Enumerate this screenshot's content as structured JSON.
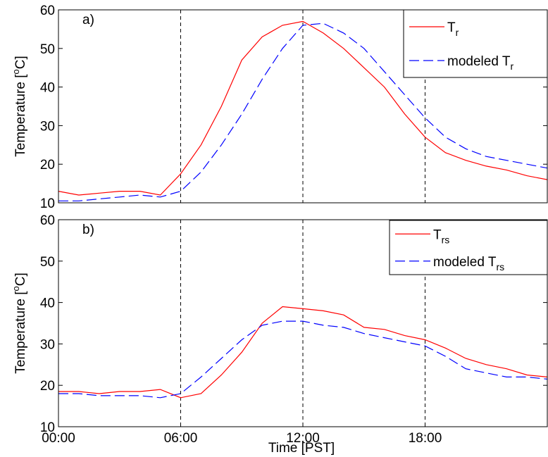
{
  "chart_data": [
    {
      "type": "line",
      "annotation": "a)",
      "ylabel": "Temperature [",
      "ylabel_sup": "o",
      "ylabel_end": "C]",
      "x": [
        0,
        1,
        2,
        3,
        4,
        5,
        6,
        7,
        8,
        9,
        10,
        11,
        12,
        13,
        14,
        15,
        16,
        17,
        18,
        19,
        20,
        21,
        22,
        23,
        24
      ],
      "xlim": [
        0,
        24
      ],
      "ylim": [
        10,
        60
      ],
      "yticks": [
        10,
        20,
        30,
        40,
        50,
        60
      ],
      "vlines": [
        6,
        12,
        18
      ],
      "legend": "upper right",
      "series": [
        {
          "name": "T",
          "subscript": "r",
          "color": "#ff0000",
          "dashed": false,
          "values": [
            13,
            12,
            12.5,
            13,
            13,
            12,
            17.5,
            25,
            35,
            47,
            53,
            56,
            57,
            54,
            50,
            45,
            40,
            33,
            27,
            23,
            21,
            19.5,
            18.5,
            17,
            16
          ]
        },
        {
          "name": "modeled T",
          "subscript": "r",
          "color": "#0000ff",
          "dashed": true,
          "values": [
            10.5,
            10.5,
            11,
            11.5,
            12,
            11.5,
            13,
            18,
            25,
            33,
            42,
            50,
            56,
            56.5,
            54,
            50,
            44,
            38,
            32,
            27,
            24,
            22,
            21,
            20,
            19
          ]
        }
      ]
    },
    {
      "type": "line",
      "annotation": "b)",
      "ylabel": "Temperature [",
      "ylabel_sup": "o",
      "ylabel_end": "C]",
      "xlabel": "Time [PST]",
      "x": [
        0,
        1,
        2,
        3,
        4,
        5,
        6,
        7,
        8,
        9,
        10,
        11,
        12,
        13,
        14,
        15,
        16,
        17,
        18,
        19,
        20,
        21,
        22,
        23,
        24
      ],
      "xlim": [
        0,
        24
      ],
      "ylim": [
        10,
        60
      ],
      "yticks": [
        10,
        20,
        30,
        40,
        50,
        60
      ],
      "vlines": [
        6,
        12,
        18
      ],
      "xticks": [
        {
          "value": 0,
          "label": "00:00"
        },
        {
          "value": 6,
          "label": "06:00"
        },
        {
          "value": 12,
          "label": "12:00"
        },
        {
          "value": 18,
          "label": "18:00"
        }
      ],
      "legend": "upper right",
      "series": [
        {
          "name": "T",
          "subscript": "rs",
          "color": "#ff0000",
          "dashed": false,
          "values": [
            18.5,
            18.5,
            18,
            18.5,
            18.5,
            19,
            17,
            18,
            22.5,
            28,
            35,
            39,
            38.5,
            38,
            37,
            34,
            33.5,
            32,
            31,
            29,
            26.5,
            25,
            24,
            22.5,
            22
          ]
        },
        {
          "name": "modeled T",
          "subscript": "rs",
          "color": "#0000ff",
          "dashed": true,
          "values": [
            18,
            18,
            17.5,
            17.5,
            17.5,
            17,
            18,
            22,
            26.5,
            31,
            34.5,
            35.5,
            35.5,
            34.5,
            34,
            32.5,
            31.5,
            30.5,
            29.5,
            27,
            24,
            23,
            22,
            22,
            21.5
          ]
        }
      ]
    }
  ]
}
